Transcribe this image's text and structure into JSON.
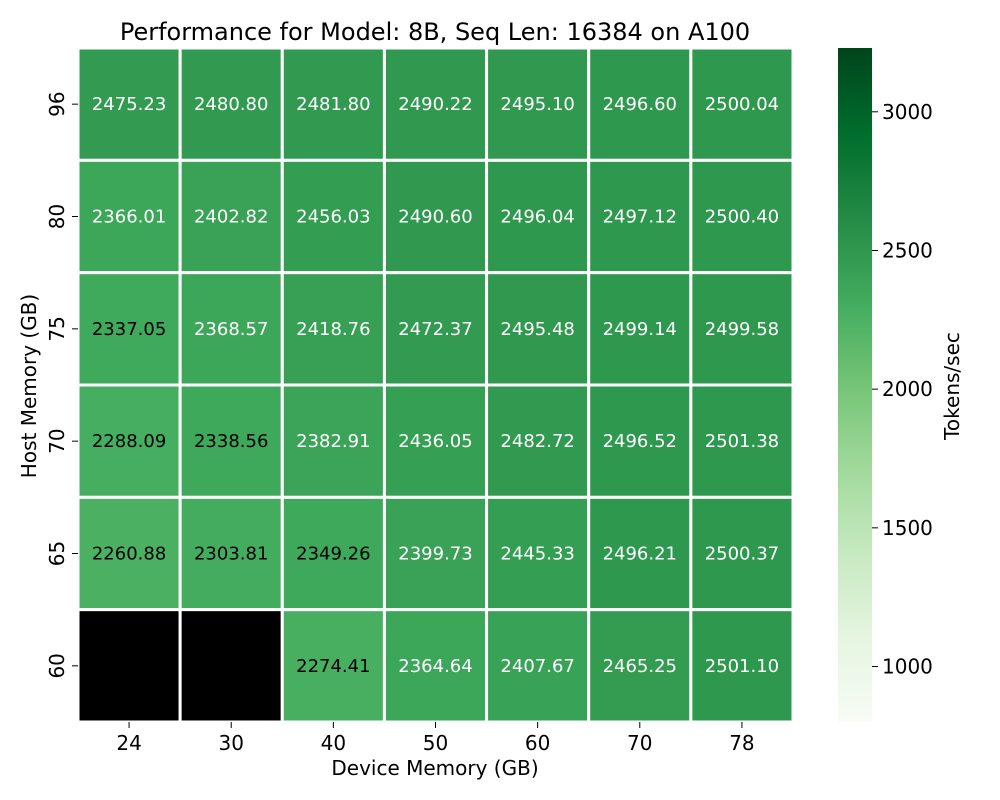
{
  "chart_data": {
    "type": "heatmap",
    "title": "Performance for Model: 8B, Seq Len: 16384 on A100",
    "xlabel": "Device Memory (GB)",
    "ylabel": "Host Memory (GB)",
    "x_categories": [
      "24",
      "30",
      "40",
      "50",
      "60",
      "70",
      "78"
    ],
    "y_categories": [
      "96",
      "80",
      "75",
      "70",
      "65",
      "60"
    ],
    "values": [
      [
        2475.23,
        2480.8,
        2481.8,
        2490.22,
        2495.1,
        2496.6,
        2500.04
      ],
      [
        2366.01,
        2402.82,
        2456.03,
        2490.6,
        2496.04,
        2497.12,
        2500.4
      ],
      [
        2337.05,
        2368.57,
        2418.76,
        2472.37,
        2495.48,
        2499.14,
        2499.58
      ],
      [
        2288.09,
        2338.56,
        2382.91,
        2436.05,
        2482.72,
        2496.52,
        2501.38
      ],
      [
        2260.88,
        2303.81,
        2349.26,
        2399.73,
        2445.33,
        2496.21,
        2500.37
      ],
      [
        null,
        null,
        2274.41,
        2364.64,
        2407.67,
        2465.25,
        2501.1
      ]
    ],
    "missing_color": "#000000",
    "colorbar": {
      "label": "Tokens/sec",
      "range": [
        800,
        3230
      ],
      "ticks": [
        1000,
        1500,
        2000,
        2500,
        3000
      ],
      "colormap": "Greens"
    }
  }
}
